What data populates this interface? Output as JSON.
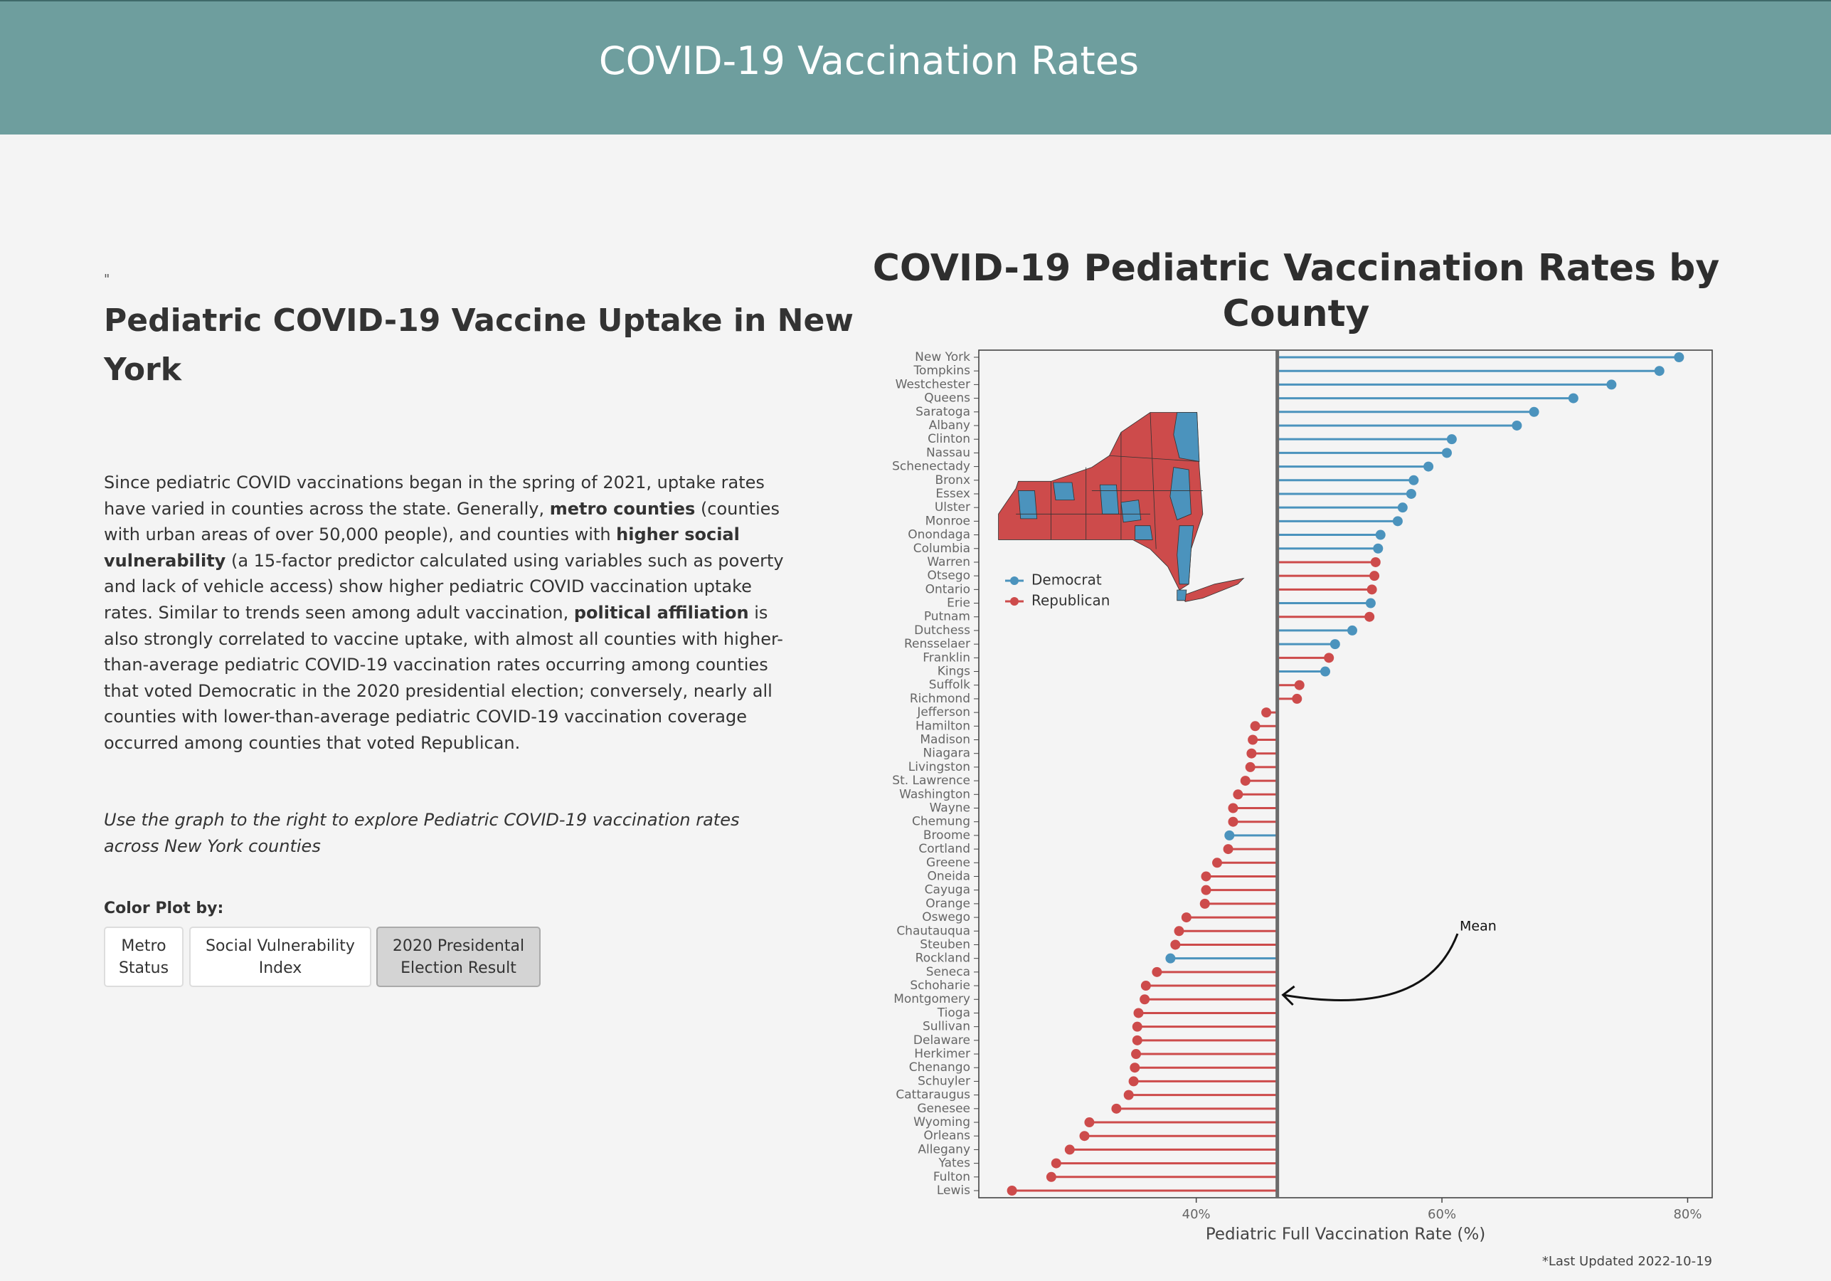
{
  "header": {
    "title": "COVID-19 Vaccination Rates"
  },
  "intro": {
    "quote_mark": "\"",
    "heading": "Pediatric COVID-19 Vaccine Uptake in New York",
    "paragraph": [
      "Since pediatric COVID vaccinations began in the spring of 2021, uptake rates have varied in counties across the state. Generally, ",
      "metro counties",
      " (counties with urban areas of over 50,000 people), and counties with ",
      "higher social vulnerability",
      " (a 15-factor predictor calculated using variables such as poverty and lack of vehicle access) show higher pediatric COVID vaccination uptake rates. Similar to trends seen among adult vaccination, ",
      "political affiliation",
      " is also strongly correlated to vaccine uptake, with almost all counties with higher-than-average pediatric COVID-19 vaccination rates occurring among counties that voted Democratic in the 2020 presidential election; conversely, nearly all counties with lower-than-average pediatric COVID-19 vaccination coverage occurred among counties that voted Republican."
    ],
    "instruction": "Use the graph to the right to explore Pediatric COVID-19 vaccination rates across New York counties"
  },
  "controls": {
    "label": "Color Plot by:",
    "buttons": [
      "Metro Status",
      "Social Vulnerability Index",
      "2020 Presidental Election Result"
    ],
    "active": 2
  },
  "chart_data": {
    "type": "lollipop",
    "title": "COVID-19 Pediatric Vaccination Rates by County",
    "x_label": "Pediatric Full Vaccination Rate (%)",
    "note": "*Last Updated 2022-10-19",
    "mean": 46.6,
    "mean_label": "Mean",
    "xlim": [
      22.3,
      82.0
    ],
    "xticks": [
      {
        "value": 40,
        "label": "40%"
      },
      {
        "value": 60,
        "label": "60%"
      },
      {
        "value": 80,
        "label": "80%"
      }
    ],
    "categories": [
      "New York",
      "Tompkins",
      "Westchester",
      "Queens",
      "Saratoga",
      "Albany",
      "Clinton",
      "Nassau",
      "Schenectady",
      "Bronx",
      "Essex",
      "Ulster",
      "Monroe",
      "Onondaga",
      "Columbia",
      "Warren",
      "Otsego",
      "Ontario",
      "Erie",
      "Putnam",
      "Dutchess",
      "Rensselaer",
      "Franklin",
      "Kings",
      "Suffolk",
      "Richmond",
      "Jefferson",
      "Hamilton",
      "Madison",
      "Niagara",
      "Livingston",
      "St. Lawrence",
      "Washington",
      "Wayne",
      "Chemung",
      "Broome",
      "Cortland",
      "Greene",
      "Oneida",
      "Cayuga",
      "Orange",
      "Oswego",
      "Chautauqua",
      "Steuben",
      "Rockland",
      "Seneca",
      "Schoharie",
      "Montgomery",
      "Tioga",
      "Sullivan",
      "Delaware",
      "Herkimer",
      "Chenango",
      "Schuyler",
      "Cattaraugus",
      "Genesee",
      "Wyoming",
      "Orleans",
      "Allegany",
      "Yates",
      "Fulton",
      "Lewis"
    ],
    "series": [
      {
        "name": "Democrat",
        "color": "#4b93bd",
        "values": [
          79.3,
          77.7,
          73.8,
          70.7,
          67.5,
          66.1,
          60.8,
          60.4,
          58.9,
          57.7,
          57.5,
          56.8,
          56.4,
          55.0,
          54.8,
          null,
          null,
          null,
          54.2,
          null,
          52.7,
          51.3,
          null,
          50.5,
          null,
          null,
          null,
          null,
          null,
          null,
          null,
          null,
          null,
          null,
          null,
          42.7,
          null,
          null,
          null,
          null,
          null,
          null,
          null,
          null,
          37.9,
          null,
          null,
          null,
          null,
          null,
          null,
          null,
          null,
          null,
          null,
          null,
          null,
          null,
          null,
          null,
          null,
          null
        ]
      },
      {
        "name": "Republican",
        "color": "#cd4b4b",
        "values": [
          null,
          null,
          null,
          null,
          null,
          null,
          null,
          null,
          null,
          null,
          null,
          null,
          null,
          null,
          null,
          54.6,
          54.5,
          54.3,
          null,
          54.1,
          null,
          null,
          50.8,
          null,
          48.4,
          48.2,
          45.7,
          44.8,
          44.6,
          44.5,
          44.4,
          44.0,
          43.4,
          43.0,
          43.0,
          null,
          42.6,
          41.7,
          40.8,
          40.8,
          40.7,
          39.2,
          38.6,
          38.3,
          null,
          36.8,
          35.9,
          35.8,
          35.3,
          35.2,
          35.2,
          35.1,
          35.0,
          34.9,
          34.5,
          33.5,
          31.3,
          30.9,
          29.7,
          28.6,
          28.2,
          25.0
        ]
      }
    ]
  }
}
